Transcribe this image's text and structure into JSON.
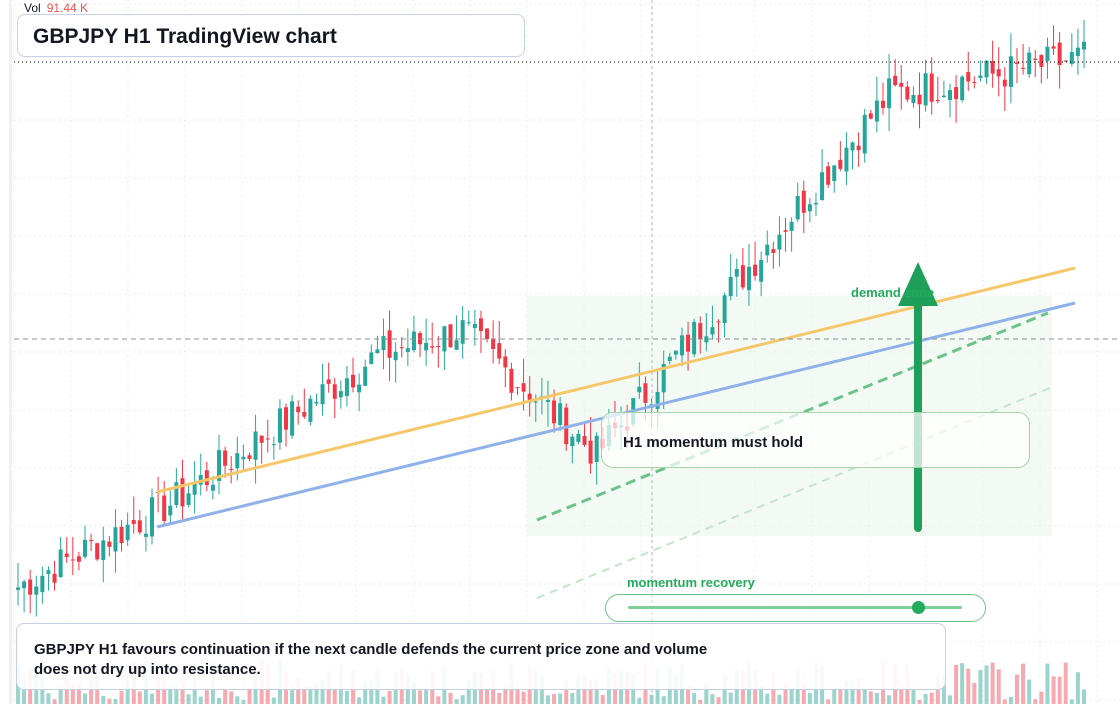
{
  "header": {
    "vol_label": "Vol",
    "vol_value": "91.44 K",
    "title": "GBPJPY H1 TradingView chart"
  },
  "annotations": {
    "hold_text": "H1 momentum must hold",
    "demand_text": "demand zone",
    "momentum_text": "momentum recovery",
    "note_text": "GBPJPY H1 favours continuation if the next candle defends the current price zone and volume does not dry up into resistance.",
    "momentum_level": 0.87
  },
  "colors": {
    "up": "#26a69a",
    "down": "#f23645",
    "up_volume": "#9bd3cd",
    "down_volume": "#f7a9b0",
    "orange_line": "#f5c76a",
    "blue_line": "#8fb1ea",
    "green_accent": "#22ab5a",
    "zone_fill": "#e8f5e9"
  },
  "icons": {
    "arrow": "up-arrow-icon"
  },
  "chart_data": {
    "type": "candlestick",
    "title": "GBPJPY H1 TradingView chart",
    "price_range": [
      0,
      100
    ],
    "grid": true,
    "volume_pane": true,
    "trend_bias": "bullish",
    "segments": [
      {
        "phase": "rally",
        "start": 8,
        "end": 22
      },
      {
        "phase": "range",
        "start": 22,
        "end": 32
      },
      {
        "phase": "rally",
        "start": 32,
        "end": 46
      },
      {
        "phase": "range",
        "start": 46,
        "end": 50
      },
      {
        "phase": "pullback",
        "start": 50,
        "end": 30
      },
      {
        "phase": "rally",
        "start": 30,
        "end": 88
      },
      {
        "phase": "range",
        "start": 88,
        "end": 94
      }
    ],
    "crosshair_level": 58.5,
    "resistance_level": 91.6,
    "trendlines": [
      {
        "name": "orange",
        "from": [
          0,
          36
        ],
        "to": [
          1,
          74
        ]
      },
      {
        "name": "blue",
        "from": [
          0,
          28
        ],
        "to": [
          1,
          66
        ]
      }
    ]
  }
}
